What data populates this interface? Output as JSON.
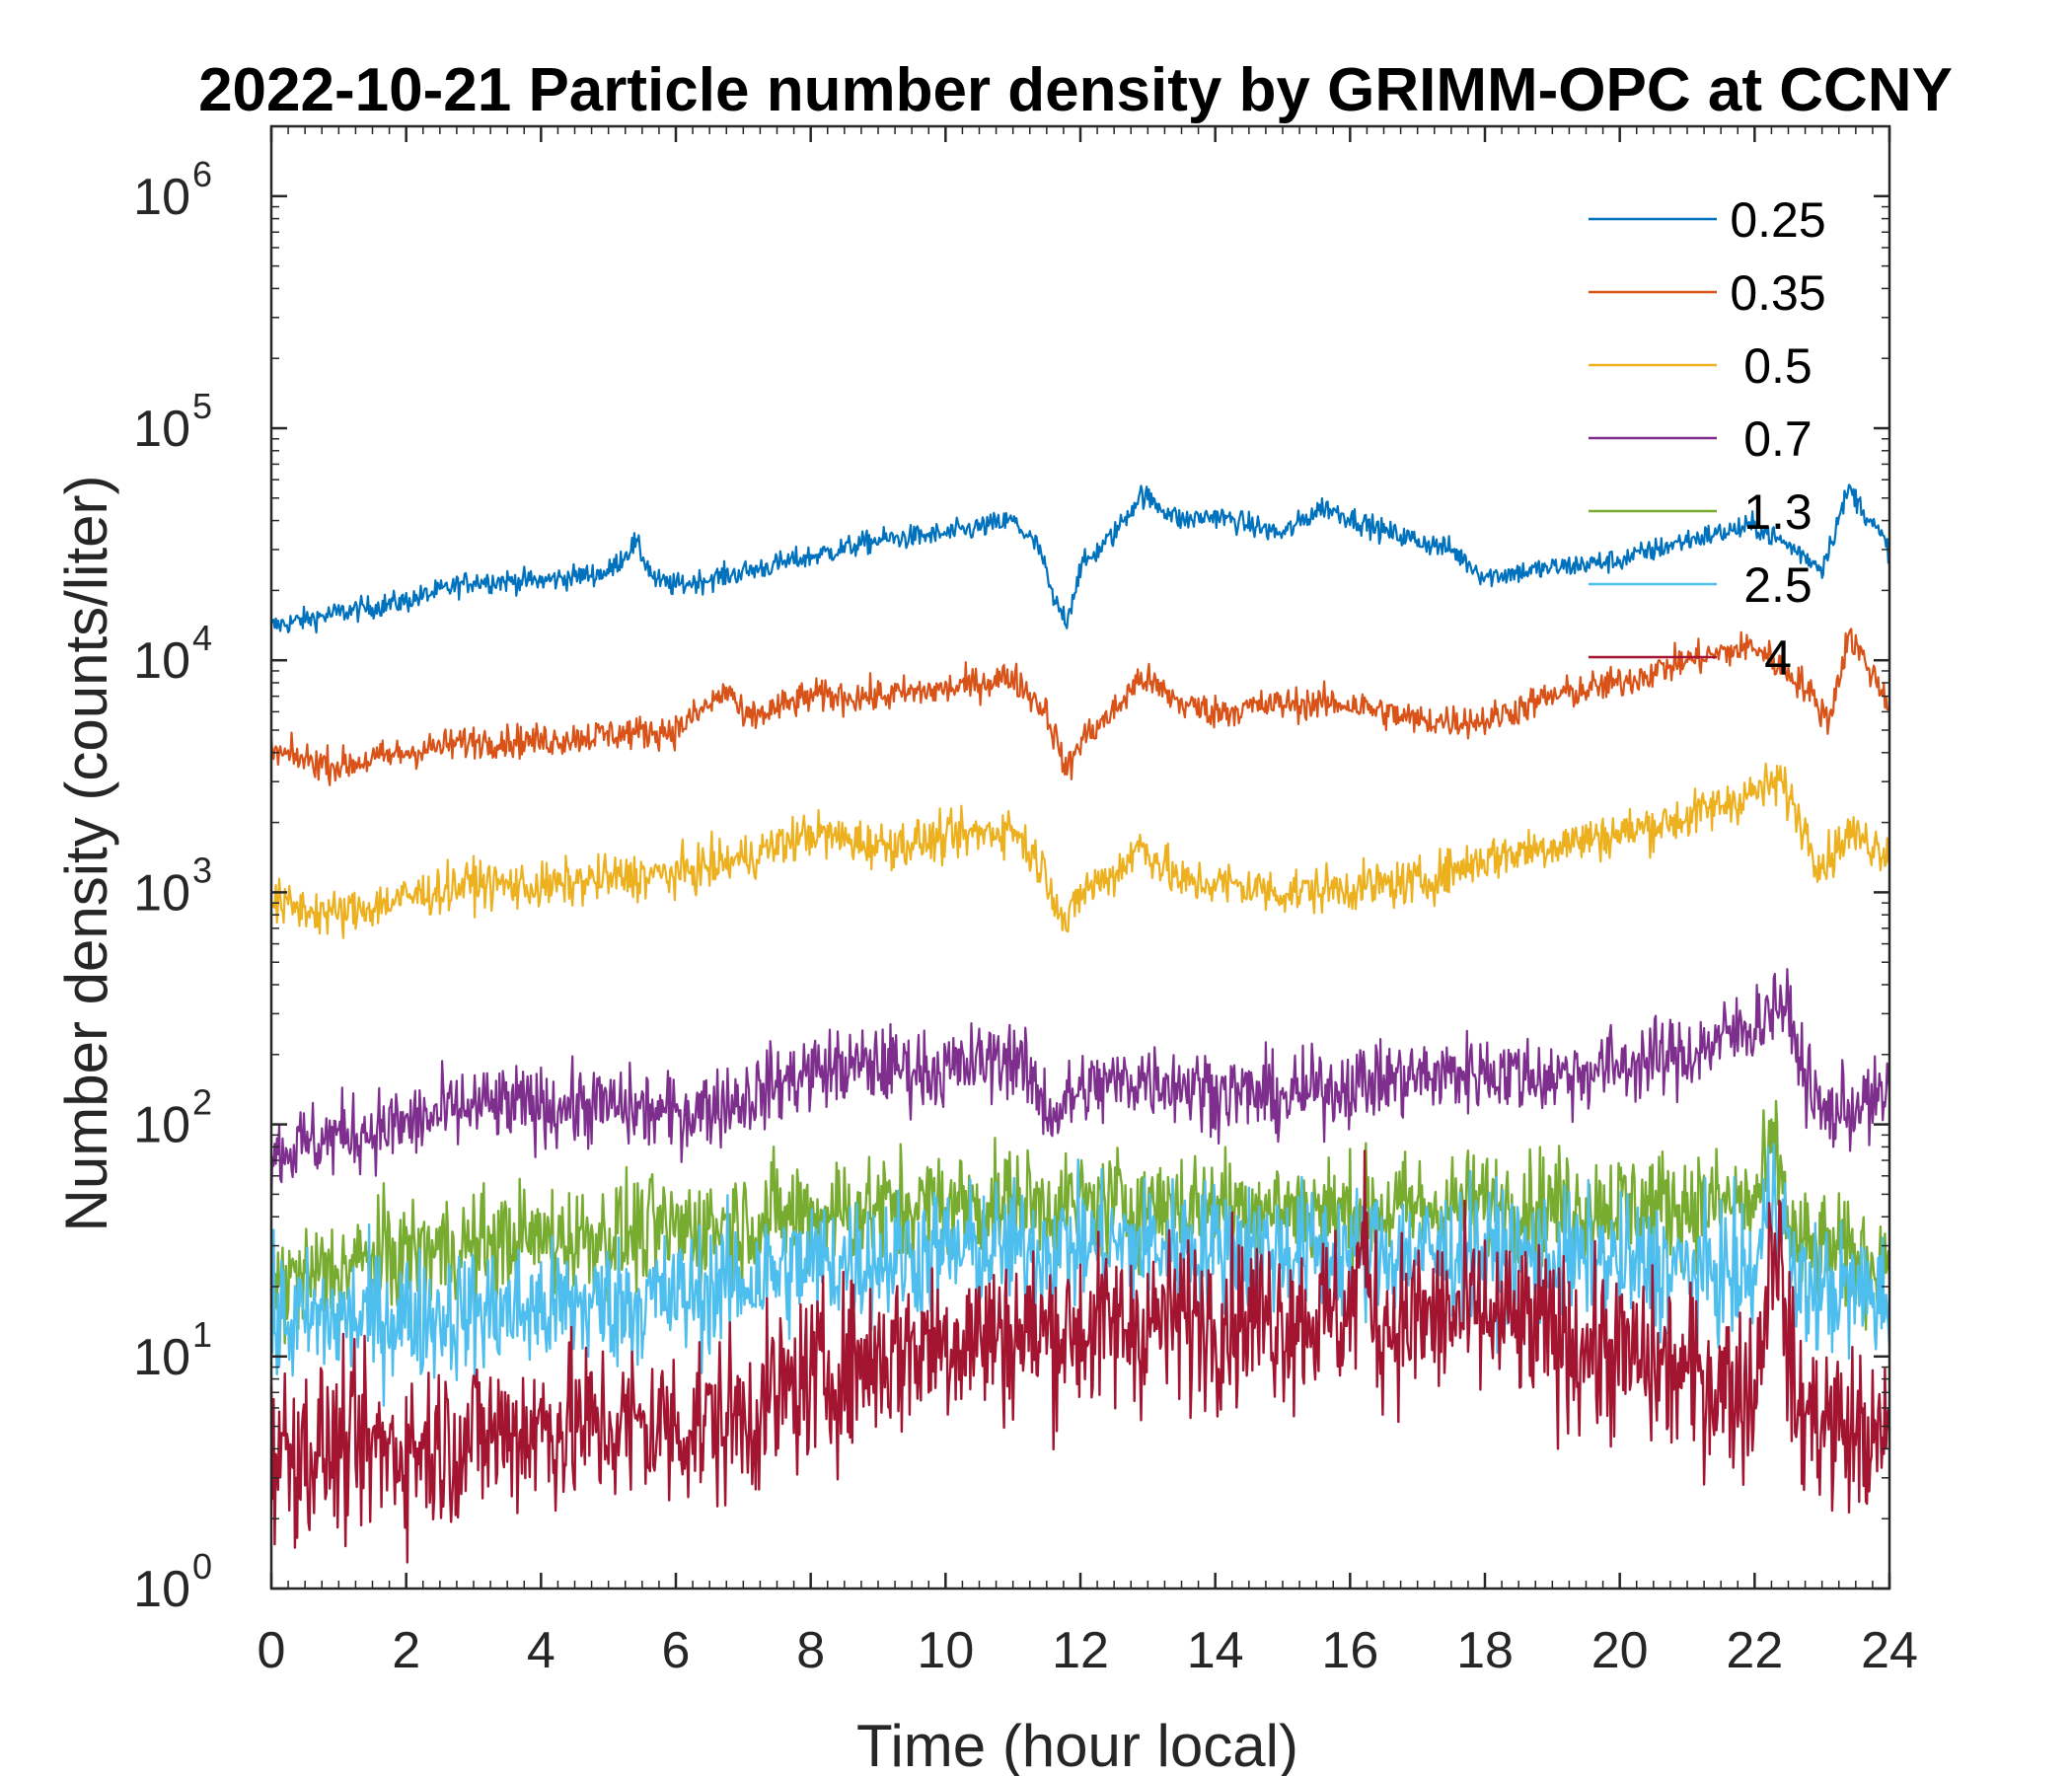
{
  "chart_data": {
    "type": "line",
    "title": "2022-10-21 Particle number density by GRIMM-OPC at CCNY",
    "xlabel": "Time (hour local)",
    "ylabel": "Number density (counts/liter)",
    "xlim": [
      0,
      24
    ],
    "ylim": [
      1,
      2000000
    ],
    "yscale": "log",
    "x_ticks": [
      "0",
      "2",
      "4",
      "6",
      "8",
      "10",
      "12",
      "14",
      "16",
      "18",
      "20",
      "22",
      "24"
    ],
    "y_ticks": [
      {
        "base": "10",
        "exp": "0",
        "value": 1
      },
      {
        "base": "10",
        "exp": "1",
        "value": 10
      },
      {
        "base": "10",
        "exp": "2",
        "value": 100
      },
      {
        "base": "10",
        "exp": "3",
        "value": 1000
      },
      {
        "base": "10",
        "exp": "4",
        "value": 10000
      },
      {
        "base": "10",
        "exp": "5",
        "value": 100000
      },
      {
        "base": "10",
        "exp": "6",
        "value": 1000000
      }
    ],
    "legend_position": "top-right",
    "series": [
      {
        "name": "0.25",
        "color": "#0072BD",
        "noise": 0.035,
        "x": [
          0,
          1,
          2,
          3,
          4,
          5,
          5.4,
          5.7,
          6,
          7,
          8,
          9,
          10,
          11,
          11.4,
          11.6,
          11.8,
          12,
          12.5,
          12.9,
          13.5,
          14,
          15,
          15.6,
          16.5,
          17.5,
          18,
          19,
          20,
          21,
          22,
          22.6,
          23,
          23.4,
          24
        ],
        "y": [
          14000,
          16000,
          18000,
          22000,
          22000,
          24000,
          32000,
          22000,
          21000,
          24000,
          28000,
          33000,
          35000,
          40000,
          30000,
          18000,
          15000,
          25000,
          35000,
          52000,
          40000,
          42000,
          35000,
          46000,
          36000,
          30000,
          23000,
          25000,
          27000,
          33000,
          38000,
          30000,
          25000,
          55000,
          30000
        ]
      },
      {
        "name": "0.35",
        "color": "#D95319",
        "noise": 0.05,
        "x": [
          0,
          1,
          2,
          3,
          4,
          5,
          6,
          6.8,
          7,
          8,
          9,
          10,
          11,
          11.5,
          11.8,
          12,
          12.5,
          12.9,
          13.5,
          14,
          15,
          16,
          17,
          18,
          19,
          20,
          21,
          22,
          22.7,
          23.1,
          23.4,
          24
        ],
        "y": [
          4000,
          3500,
          4000,
          4500,
          4500,
          4800,
          5000,
          7500,
          5500,
          7000,
          7000,
          7500,
          8500,
          6000,
          3300,
          4500,
          6000,
          8500,
          6500,
          6000,
          6500,
          6500,
          5500,
          5500,
          7000,
          8000,
          10000,
          11500,
          8000,
          5500,
          13000,
          6500
        ]
      },
      {
        "name": "0.5",
        "color": "#EDB120",
        "noise": 0.07,
        "x": [
          0,
          1,
          2,
          3,
          4,
          5,
          6,
          7,
          8,
          9,
          10,
          11,
          11.5,
          11.8,
          12,
          12.5,
          12.9,
          13.5,
          14,
          15,
          16,
          17,
          18,
          19,
          20,
          21,
          22,
          22.4,
          23,
          23.4,
          24
        ],
        "y": [
          900,
          800,
          950,
          1100,
          1050,
          1150,
          1200,
          1400,
          1800,
          1600,
          1700,
          1900,
          1200,
          700,
          1000,
          1200,
          1600,
          1100,
          1100,
          1000,
          1050,
          1100,
          1400,
          1600,
          1800,
          2100,
          2700,
          3000,
          1300,
          1800,
          1500
        ]
      },
      {
        "name": "0.7",
        "color": "#7E2F8E",
        "noise": 0.12,
        "x": [
          0,
          1,
          2,
          3,
          4,
          5,
          6,
          7,
          8,
          9,
          10,
          11,
          11.6,
          12,
          13,
          14,
          15,
          16,
          17,
          18,
          19,
          20,
          21,
          22,
          22.4,
          22.8,
          23,
          24
        ],
        "y": [
          75,
          90,
          100,
          120,
          120,
          120,
          110,
          130,
          170,
          180,
          170,
          200,
          110,
          140,
          160,
          140,
          130,
          150,
          160,
          170,
          160,
          180,
          200,
          270,
          350,
          150,
          110,
          130
        ]
      },
      {
        "name": "1.3",
        "color": "#77AC30",
        "noise": 0.17,
        "x": [
          0,
          2,
          4,
          6,
          8,
          10,
          12,
          14,
          16,
          18,
          20,
          22,
          22.3,
          22.6,
          24
        ],
        "y": [
          20,
          28,
          32,
          35,
          42,
          45,
          45,
          45,
          42,
          45,
          45,
          45,
          80,
          30,
          25
        ]
      },
      {
        "name": "2.5",
        "color": "#4DBEEE",
        "noise": 0.2,
        "x": [
          0,
          2,
          4,
          6,
          8,
          10,
          12,
          14,
          16,
          18,
          20,
          22,
          22.3,
          22.6,
          24
        ],
        "y": [
          14,
          15,
          16,
          18,
          25,
          28,
          30,
          30,
          28,
          28,
          25,
          22,
          60,
          20,
          18
        ]
      },
      {
        "name": "4",
        "color": "#A2142F",
        "noise": 0.26,
        "x": [
          0,
          2,
          4,
          6,
          7,
          8,
          9,
          10,
          12,
          14,
          16,
          16.2,
          16.4,
          18,
          20,
          22,
          22.3,
          22.6,
          24
        ],
        "y": [
          4,
          4,
          5,
          5,
          5.5,
          8,
          10,
          12,
          13,
          15,
          15,
          30,
          14,
          15,
          10,
          7,
          40,
          6,
          4
        ]
      }
    ]
  }
}
